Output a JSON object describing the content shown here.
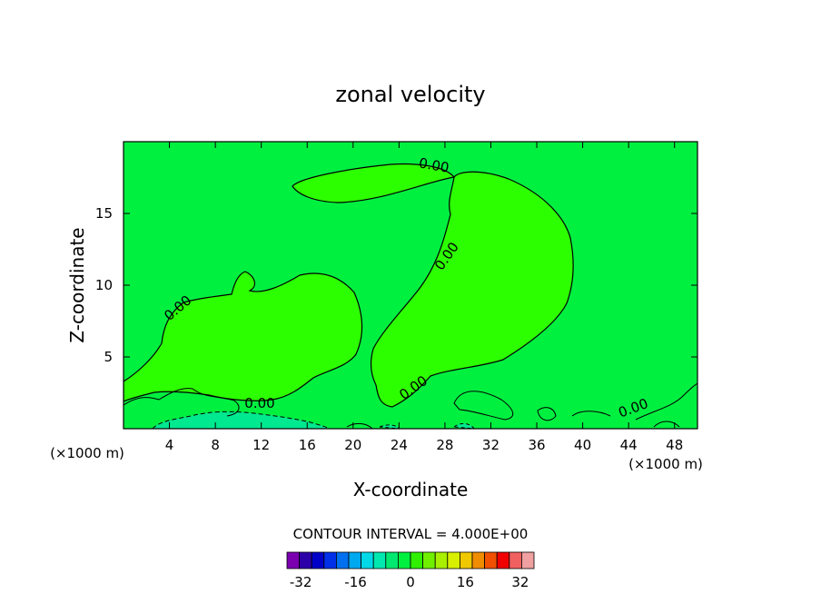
{
  "chart_data": {
    "type": "heatmap",
    "title": "zonal velocity",
    "xlabel": "X-coordinate",
    "ylabel": "Z-coordinate",
    "x_unit_left": "(×1000 m)",
    "x_unit_right": "(×1000 m)",
    "xlim": [
      0,
      50
    ],
    "ylim": [
      0,
      20
    ],
    "x_ticks": [
      4,
      8,
      12,
      16,
      20,
      24,
      28,
      32,
      36,
      40,
      44,
      48
    ],
    "y_ticks": [
      5,
      10,
      15
    ],
    "grid": false,
    "contour_interval_label": "CONTOUR INTERVAL = 4.000E+00",
    "contour_interval": 4.0,
    "contour_labels": [
      "0.00",
      "0.00",
      "0.00",
      "0.00",
      "0.00",
      "0.00"
    ],
    "background_value_range": [
      -4,
      0
    ],
    "regions": [
      {
        "name": "upper-right positive region",
        "value_range": [
          0,
          4
        ]
      },
      {
        "name": "left positive region",
        "value_range": [
          0,
          4
        ]
      },
      {
        "name": "near-surface negative region",
        "value_range": [
          -8,
          -4
        ]
      }
    ],
    "colorbar": {
      "ticks": [
        "-32",
        "-16",
        "0",
        "16",
        "32"
      ],
      "tick_values": [
        -32,
        -16,
        0,
        16,
        32
      ],
      "bins": [
        -36,
        -32,
        -28,
        -24,
        -20,
        -16,
        -12,
        -8,
        -4,
        0,
        4,
        8,
        12,
        16,
        20,
        24,
        28,
        32,
        36
      ],
      "colors": [
        "#7a00b0",
        "#2c00a8",
        "#0000c8",
        "#0030e8",
        "#0070f0",
        "#00a8f0",
        "#00d8e8",
        "#00e8b0",
        "#00e870",
        "#00f040",
        "#30f000",
        "#70f000",
        "#a8f000",
        "#d8f000",
        "#f0c800",
        "#f08c00",
        "#f05000",
        "#f00000",
        "#f06060",
        "#f0a0a0"
      ]
    },
    "colors": {
      "background_field": "#00f040",
      "positive_field": "#2cff00",
      "negative_field": "#00e890",
      "contour_line": "#000000"
    }
  }
}
